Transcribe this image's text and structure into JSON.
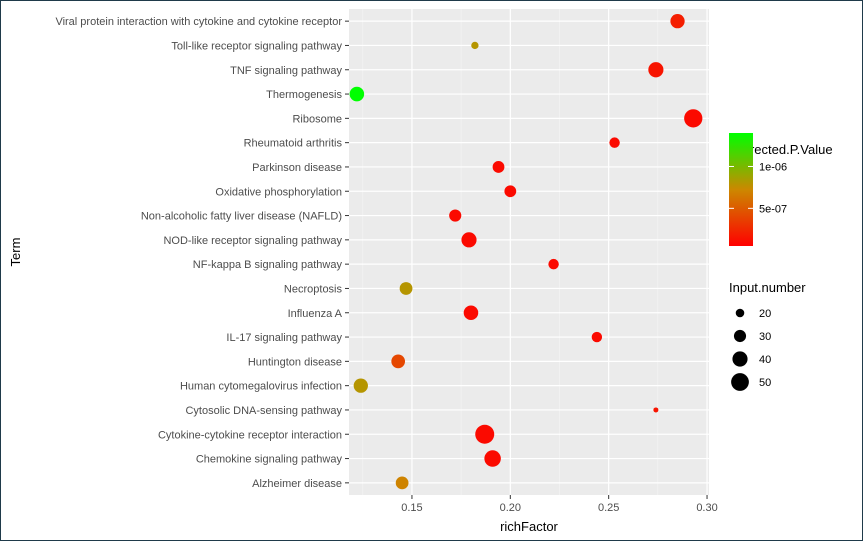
{
  "chart_data": {
    "type": "scatter",
    "title": "",
    "xlabel": "richFactor",
    "ylabel": "Term",
    "xlim": [
      0.118,
      0.301
    ],
    "xticks": [
      "0.15",
      "0.20",
      "0.25",
      "0.30"
    ],
    "xtick_values": [
      0.15,
      0.2,
      0.25,
      0.3
    ],
    "grid": true,
    "legend_placement": "right",
    "color_low": "#ff0000",
    "color_high": "#00ff00",
    "point_min_size": 15,
    "point_max_size": 55,
    "points": [
      {
        "term": "Viral protein interaction with cytokine and cytokine receptor",
        "richFactor": 0.285,
        "input_number": 37,
        "p_value": 2e-07
      },
      {
        "term": "Toll-like receptor signaling pathway",
        "richFactor": 0.182,
        "input_number": 17,
        "p_value": 8e-07
      },
      {
        "term": "TNF signaling pathway",
        "richFactor": 0.274,
        "input_number": 40,
        "p_value": 1.5e-07
      },
      {
        "term": "Thermogenesis",
        "richFactor": 0.122,
        "input_number": 38,
        "p_value": 1.5e-06
      },
      {
        "term": "Ribosome",
        "richFactor": 0.293,
        "input_number": 52,
        "p_value": 1e-07
      },
      {
        "term": "Rheumatoid arthritis",
        "richFactor": 0.253,
        "input_number": 25,
        "p_value": 1e-07
      },
      {
        "term": "Parkinson disease",
        "richFactor": 0.194,
        "input_number": 29,
        "p_value": 1e-07
      },
      {
        "term": "Oxidative phosphorylation",
        "richFactor": 0.2,
        "input_number": 29,
        "p_value": 1e-07
      },
      {
        "term": "Non-alcoholic fatty liver disease (NAFLD)",
        "richFactor": 0.172,
        "input_number": 30,
        "p_value": 1e-07
      },
      {
        "term": "NOD-like receptor signaling pathway",
        "richFactor": 0.179,
        "input_number": 40,
        "p_value": 1e-07
      },
      {
        "term": "NF-kappa B signaling pathway",
        "richFactor": 0.222,
        "input_number": 25,
        "p_value": 1e-07
      },
      {
        "term": "Necroptosis",
        "richFactor": 0.147,
        "input_number": 32,
        "p_value": 8e-07
      },
      {
        "term": "Influenza A",
        "richFactor": 0.18,
        "input_number": 38,
        "p_value": 1e-07
      },
      {
        "term": "IL-17 signaling pathway",
        "richFactor": 0.244,
        "input_number": 25,
        "p_value": 1e-07
      },
      {
        "term": "Huntington disease",
        "richFactor": 0.143,
        "input_number": 35,
        "p_value": 4e-07
      },
      {
        "term": "Human cytomegalovirus infection",
        "richFactor": 0.124,
        "input_number": 37,
        "p_value": 8e-07
      },
      {
        "term": "Cytosolic DNA-sensing pathway",
        "richFactor": 0.274,
        "input_number": 12,
        "p_value": 1.5e-07
      },
      {
        "term": "Cytokine-cytokine receptor interaction",
        "richFactor": 0.187,
        "input_number": 55,
        "p_value": 1e-07
      },
      {
        "term": "Chemokine signaling pathway",
        "richFactor": 0.191,
        "input_number": 45,
        "p_value": 1e-07
      },
      {
        "term": "Alzheimer disease",
        "richFactor": 0.145,
        "input_number": 32,
        "p_value": 7e-07
      }
    ],
    "legend_color": {
      "title": "Corrected.P.Value",
      "range": [
        5e-08,
        1.4e-06
      ],
      "ticks": [
        {
          "value": 5e-07,
          "label": "5e-07"
        },
        {
          "value": 1e-06,
          "label": "1e-06"
        }
      ]
    },
    "legend_size": {
      "title": "Input.number",
      "entries": [
        {
          "value": 20,
          "label": "20"
        },
        {
          "value": 30,
          "label": "30"
        },
        {
          "value": 40,
          "label": "40"
        },
        {
          "value": 50,
          "label": "50"
        }
      ]
    }
  }
}
